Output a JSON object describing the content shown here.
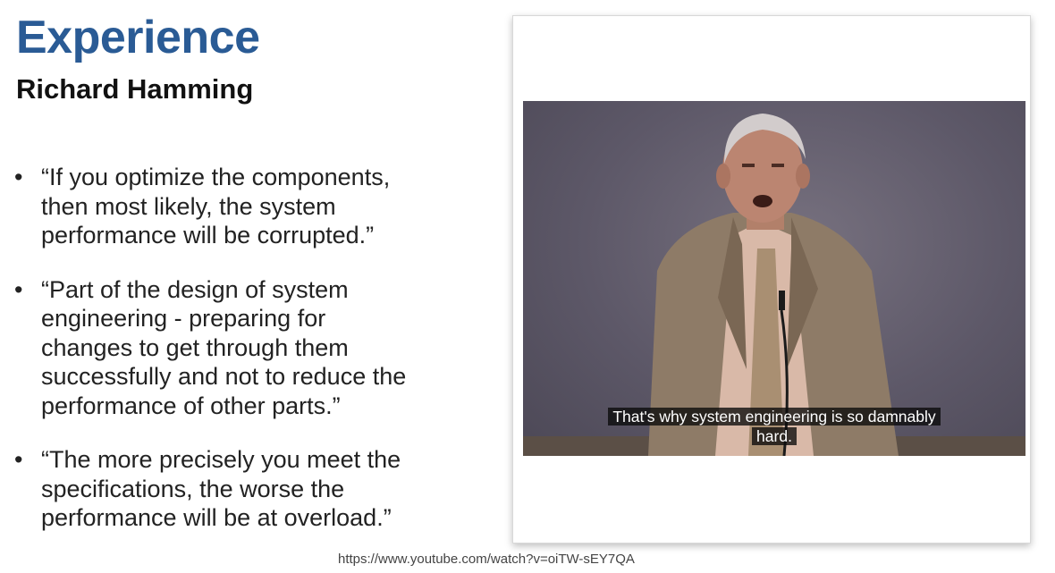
{
  "slide": {
    "title": "Experience",
    "subtitle": "Richard Hamming",
    "bullet_marker": "•",
    "bullets": [
      {
        "lines": [
          "“If you optimize the components,",
          "then most likely, the system",
          "performance will be corrupted.”"
        ]
      },
      {
        "lines": [
          "“Part of the design of system",
          "engineering - preparing for",
          "changes to get through them",
          "successfully and not to reduce the",
          "performance of other parts.”"
        ]
      },
      {
        "lines": [
          "“The more precisely you meet the",
          "specifications, the worse the",
          "performance will be at overload.”"
        ]
      }
    ],
    "video": {
      "caption_lines": [
        "That's why system engineering is so damnably",
        "hard."
      ]
    },
    "source_url": "https://www.youtube.com/watch?v=oiTW-sEY7QA",
    "colors": {
      "title": "#2a5b95"
    }
  }
}
